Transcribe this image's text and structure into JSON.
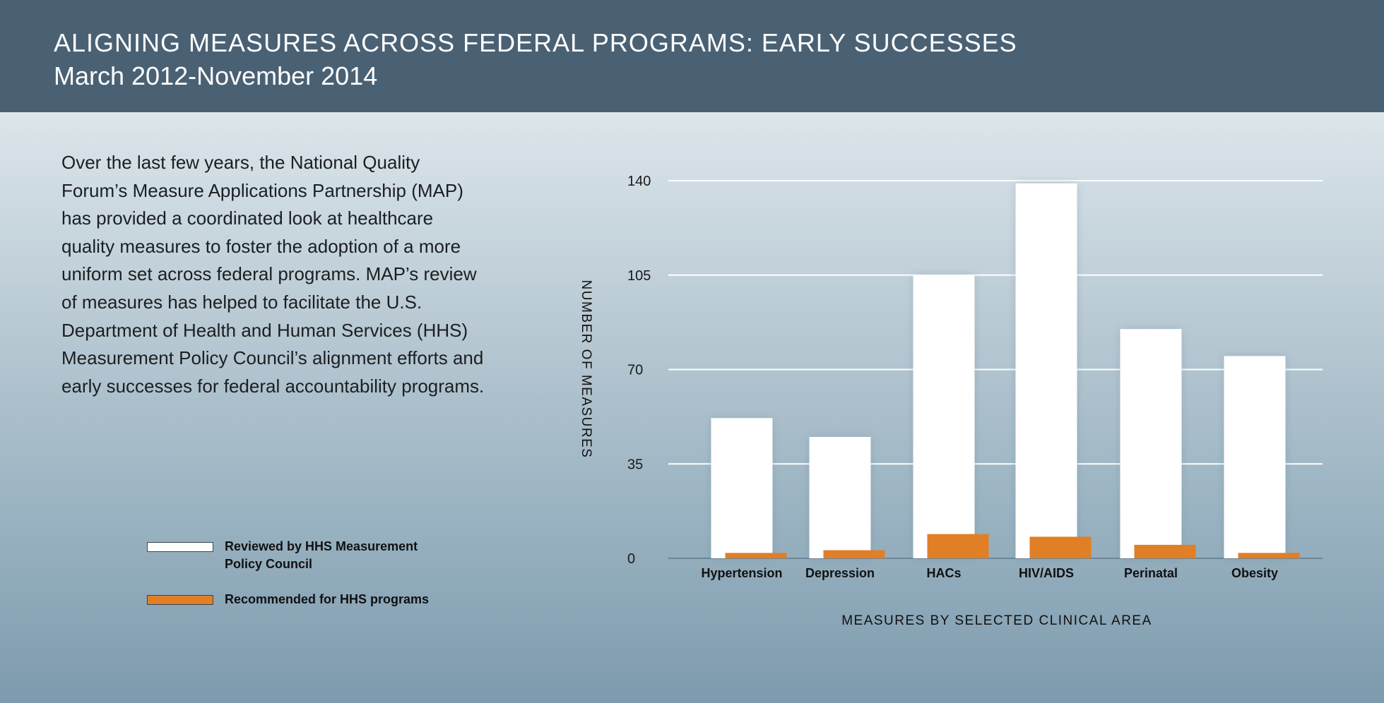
{
  "header": {
    "title": "ALIGNING MEASURES ACROSS FEDERAL PROGRAMS: EARLY SUCCESSES",
    "subtitle": "March 2012-November 2014"
  },
  "intro_text": "Over the last few years, the National Quality Forum’s Measure Applications Partnership (MAP) has provided a coordinated look at healthcare quality measures to foster the adoption of a more uniform set across federal programs. MAP’s review of measures has helped to facilitate the U.S. Department of Health and Human Services (HHS) Measurement Policy Council’s alignment efforts and early successes for federal accountability programs.",
  "legend": {
    "items": [
      {
        "label_line1": "Reviewed by HHS Measurement",
        "label_line2": "Policy Council",
        "color": "#ffffff"
      },
      {
        "label_line1": "Recommended for HHS programs",
        "label_line2": "",
        "color": "#e07f26"
      }
    ]
  },
  "colors": {
    "header_bg": "#4a6174",
    "reviewed": "#ffffff",
    "recommended": "#e07f26",
    "gridline": "#ffffff",
    "baseline": "#6d8698"
  },
  "chart_data": {
    "type": "bar",
    "title": "",
    "xlabel": "MEASURES BY SELECTED CLINICAL AREA",
    "ylabel": "NUMBER OF MEASURES",
    "categories": [
      "Hypertension",
      "Depression",
      "HACs",
      "HIV/AIDS",
      "Perinatal",
      "Obesity"
    ],
    "series": [
      {
        "name": "Reviewed by HHS Measurement Policy Council",
        "values": [
          52,
          45,
          105,
          139,
          85,
          75
        ]
      },
      {
        "name": "Recommended for HHS programs",
        "values": [
          2,
          3,
          9,
          8,
          5,
          2
        ]
      }
    ],
    "ylim": [
      0,
      140
    ],
    "yticks": [
      0,
      35,
      70,
      105,
      140
    ],
    "grid": true,
    "legend_position": "bottom-left"
  }
}
